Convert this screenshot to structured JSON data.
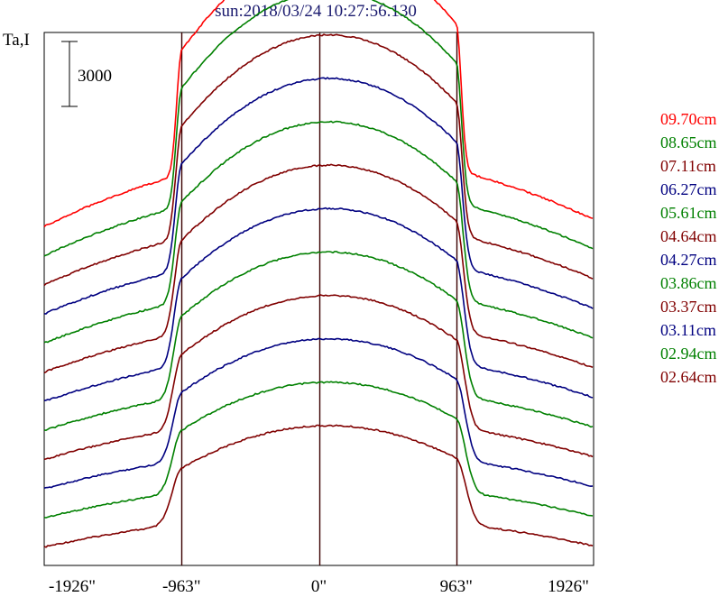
{
  "chart_data": {
    "type": "line",
    "title": "sun:2018/03/24 10:27:56.130",
    "ylabel": "Ta,I",
    "scale_bar_label": "3000",
    "x_tick_labels": [
      "-1926\"",
      "-963\"",
      "0\"",
      "963\"",
      "1926\""
    ],
    "x_ticks": [
      -1926,
      -963,
      0,
      963,
      1926
    ],
    "xlim": [
      -1926,
      1926
    ],
    "grid": false,
    "legend_position": "right",
    "series": [
      {
        "name": "09.70cm",
        "color": "#ff0000"
      },
      {
        "name": "08.65cm",
        "color": "#008000"
      },
      {
        "name": "07.11cm",
        "color": "#800000"
      },
      {
        "name": "06.27cm",
        "color": "#000080"
      },
      {
        "name": "05.61cm",
        "color": "#008000"
      },
      {
        "name": "04.64cm",
        "color": "#800000"
      },
      {
        "name": "04.27cm",
        "color": "#000080"
      },
      {
        "name": "03.86cm",
        "color": "#008000"
      },
      {
        "name": "03.37cm",
        "color": "#800000"
      },
      {
        "name": "03.11cm",
        "color": "#000080"
      },
      {
        "name": "02.94cm",
        "color": "#008000"
      },
      {
        "name": "02.64cm",
        "color": "#800000"
      }
    ]
  }
}
